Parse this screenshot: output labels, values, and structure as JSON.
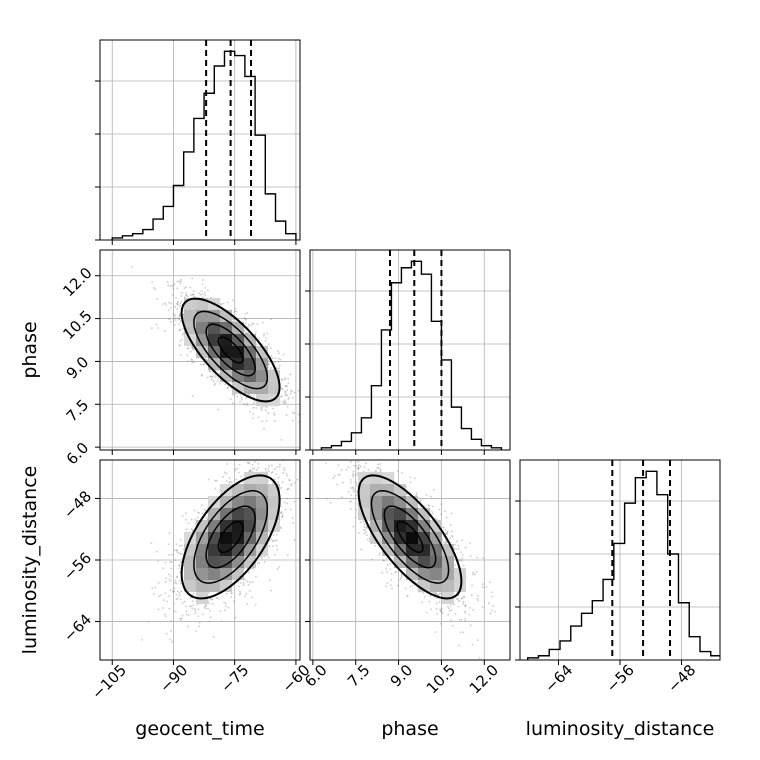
{
  "chart_data": {
    "type": "corner",
    "grid": true,
    "parameters": [
      {
        "name": "geocent_time",
        "label": "geocent_time",
        "range": [
          -108,
          -59
        ],
        "ticks": [
          -105,
          -90,
          -75,
          -60
        ],
        "tick_labels": [
          "−105",
          "−90",
          "−75",
          "−60"
        ],
        "quantiles": [
          -82,
          -76,
          -71
        ],
        "histogram": {
          "bin_edges": [
            -105,
            -102.5,
            -100,
            -97.5,
            -95,
            -92.5,
            -90,
            -87.5,
            -85,
            -82.5,
            -80,
            -77.5,
            -75,
            -72.5,
            -70,
            -67.5,
            -65,
            -62.5,
            -60
          ],
          "counts": [
            0.01,
            0.02,
            0.03,
            0.05,
            0.1,
            0.16,
            0.26,
            0.42,
            0.58,
            0.7,
            0.83,
            0.9,
            0.88,
            0.78,
            0.5,
            0.22,
            0.09,
            0.03
          ]
        }
      },
      {
        "name": "phase",
        "label": "phase",
        "range": [
          5.9,
          12.9
        ],
        "ticks": [
          6.0,
          7.5,
          9.0,
          10.5,
          12.0
        ],
        "tick_labels": [
          "6.0",
          "7.5",
          "9.0",
          "10.5",
          "12.0"
        ],
        "quantiles": [
          8.7,
          9.55,
          10.5
        ],
        "histogram": {
          "bin_edges": [
            6.3,
            6.65,
            7.0,
            7.35,
            7.7,
            8.05,
            8.4,
            8.75,
            9.1,
            9.45,
            9.8,
            10.15,
            10.5,
            10.85,
            11.2,
            11.55,
            11.9,
            12.25,
            12.6
          ],
          "counts": [
            0.01,
            0.02,
            0.04,
            0.08,
            0.15,
            0.3,
            0.56,
            0.78,
            0.85,
            0.88,
            0.82,
            0.6,
            0.42,
            0.2,
            0.1,
            0.05,
            0.02,
            0.01
          ]
        }
      },
      {
        "name": "luminosity_distance",
        "label": "luminosity_distance",
        "range": [
          -69,
          -43
        ],
        "ticks": [
          -64,
          -56,
          -48
        ],
        "tick_labels": [
          "−64",
          "−56",
          "−48"
        ],
        "quantiles": [
          -57,
          -53,
          -49.5
        ],
        "histogram": {
          "bin_edges": [
            -68,
            -66.6,
            -65.2,
            -63.8,
            -62.4,
            -61,
            -59.6,
            -58.2,
            -56.8,
            -55.4,
            -54,
            -52.6,
            -51.2,
            -49.8,
            -48.4,
            -47,
            -45.6,
            -44.2,
            -42.8
          ],
          "counts": [
            0.01,
            0.02,
            0.05,
            0.09,
            0.16,
            0.22,
            0.28,
            0.38,
            0.55,
            0.74,
            0.86,
            0.89,
            0.78,
            0.5,
            0.27,
            0.11,
            0.04,
            0.02
          ]
        }
      }
    ],
    "pairs": [
      {
        "x": "geocent_time",
        "y": "phase",
        "mean": [
          -76,
          9.4
        ],
        "std": [
          6,
          0.9
        ],
        "correlation": -0.72
      },
      {
        "x": "geocent_time",
        "y": "luminosity_distance",
        "mean": [
          -76,
          -53
        ],
        "std": [
          6,
          4
        ],
        "correlation": 0.6
      },
      {
        "x": "phase",
        "y": "luminosity_distance",
        "mean": [
          9.4,
          -53
        ],
        "std": [
          0.9,
          4
        ],
        "correlation": -0.72
      }
    ],
    "contour_levels_sigma": [
      0.5,
      1.0,
      1.5,
      2.0
    ]
  }
}
